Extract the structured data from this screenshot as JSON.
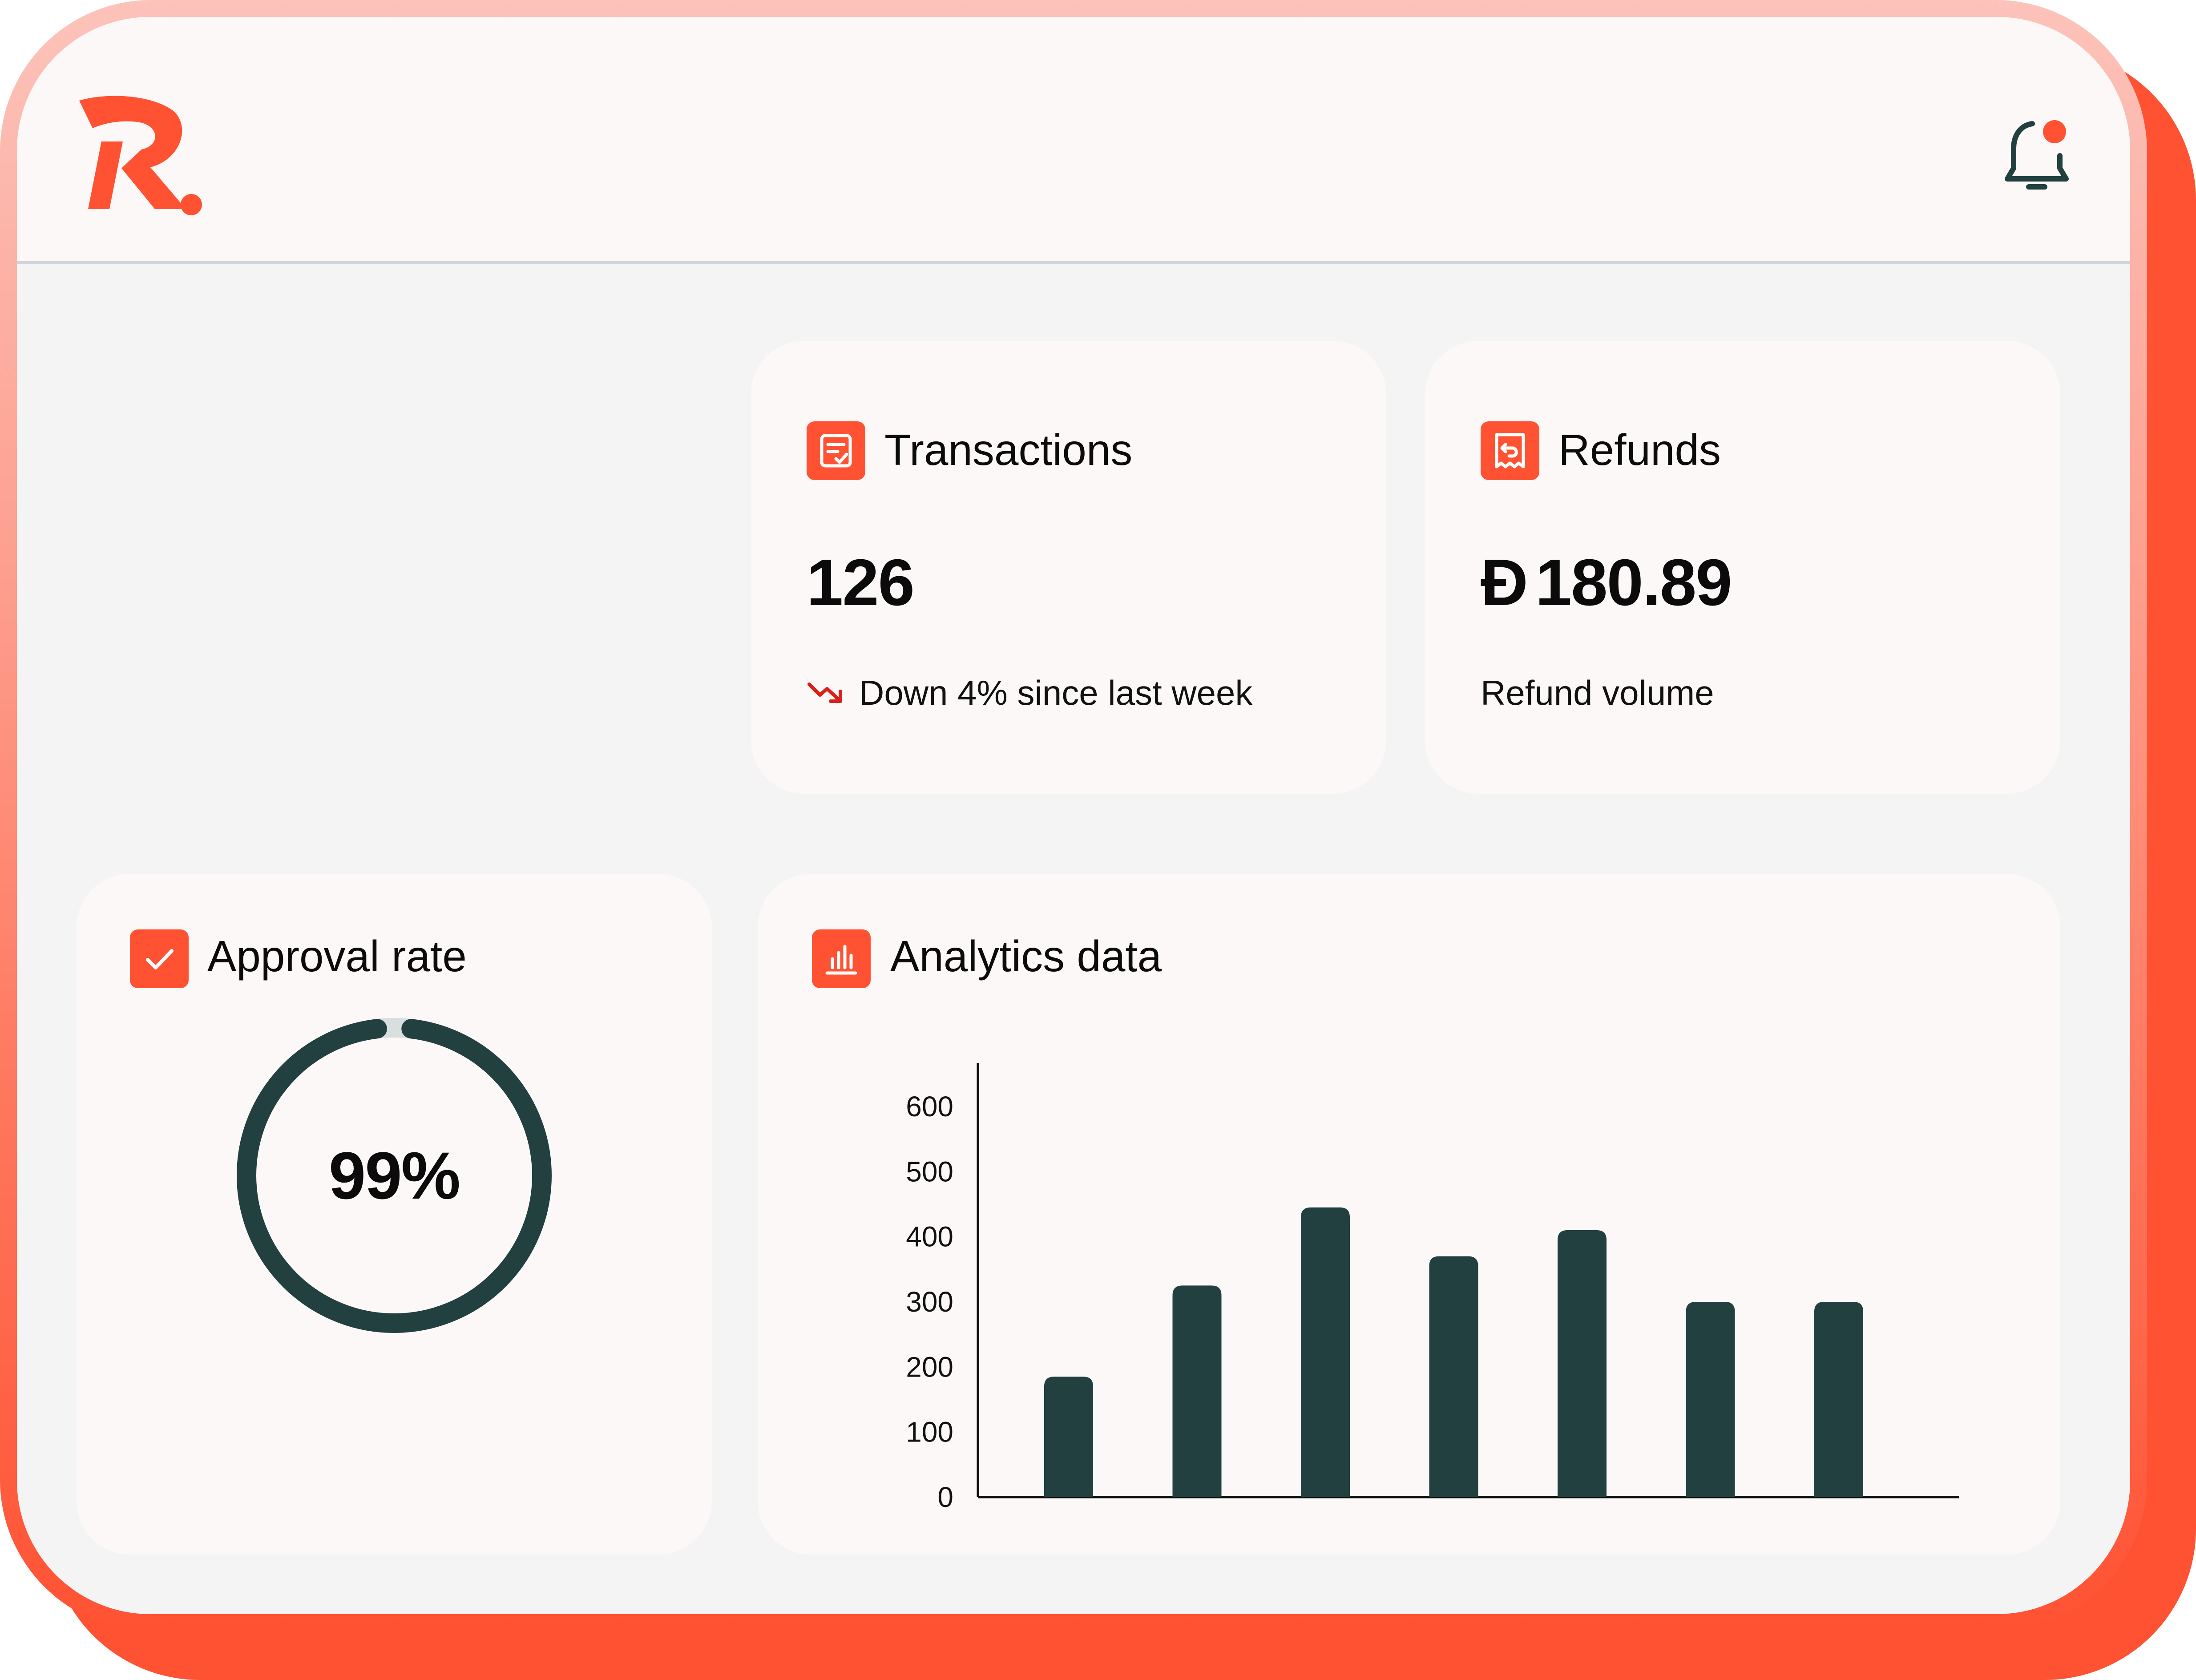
{
  "brand": {
    "logo_icon": "r-logo-icon",
    "accent_color": "#ff5233",
    "dark_color": "#22403f"
  },
  "header": {
    "notification_icon": "bell-icon",
    "has_unread": true
  },
  "cards": {
    "transactions": {
      "icon": "receipt-check-icon",
      "title": "Transactions",
      "value": "126",
      "trend_icon": "trend-down-icon",
      "trend_text": "Down 4% since last week"
    },
    "refunds": {
      "icon": "receipt-refund-icon",
      "title": "Refunds",
      "currency_symbol": "Đ",
      "value": "180.89",
      "caption": "Refund volume"
    },
    "approval": {
      "icon": "checkmark-icon",
      "title": "Approval rate",
      "value_label": "99%",
      "value": 0.99
    },
    "analytics": {
      "icon": "bar-chart-icon",
      "title": "Analytics data"
    }
  },
  "chart_data": {
    "type": "bar",
    "categories": [
      "",
      "",
      "",
      "",
      "",
      "",
      ""
    ],
    "values": [
      185,
      325,
      445,
      370,
      410,
      300,
      300
    ],
    "ylim": [
      0,
      600
    ],
    "yticks": [
      "0",
      "100",
      "200",
      "300",
      "400",
      "500",
      "600"
    ],
    "grid": false,
    "bar_color": "#22403f"
  }
}
